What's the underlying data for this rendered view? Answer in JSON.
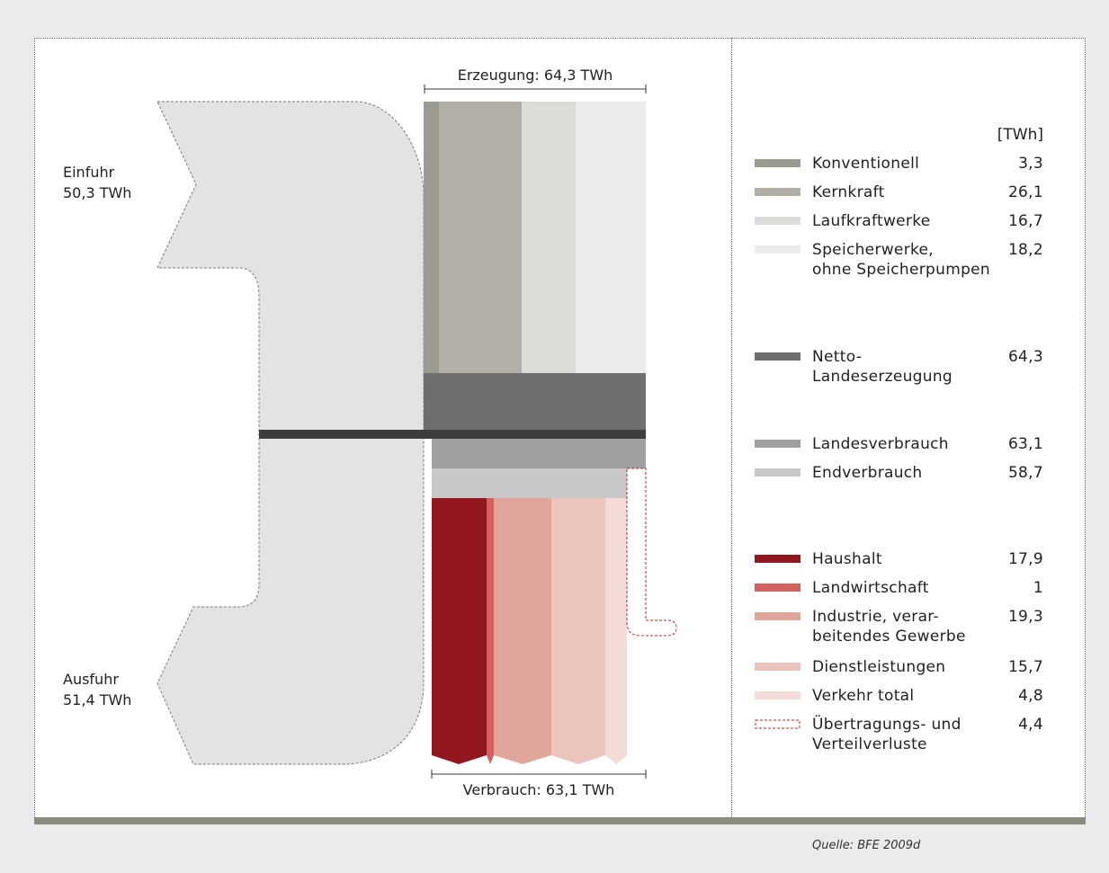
{
  "diagram": {
    "import": {
      "label": "Einfuhr",
      "value": "50,3 TWh"
    },
    "export": {
      "label": "Ausfuhr",
      "value": "51,4 TWh"
    },
    "production_label": "Erzeugung: 64,3 TWh",
    "consumption_label": "Verbrauch: 63,1 TWh"
  },
  "legend": {
    "unit": "[TWh]",
    "items": [
      {
        "key": "konventionell",
        "name": "Konventionell",
        "value": "3,3",
        "color": "#9a9a8e"
      },
      {
        "key": "kernkraft",
        "name": "Kernkraft",
        "value": "26,1",
        "color": "#b1afa6"
      },
      {
        "key": "laufkraftwerke",
        "name": "Laufkraftwerke",
        "value": "16,7",
        "color": "#dcdcd8"
      },
      {
        "key": "speicherwerke",
        "name": "Speicherwerke,\nohne Speicherpumpen",
        "value": "18,2",
        "color": "#ececec"
      },
      {
        "key": "netto",
        "name": "Netto-\nLandeserzeugung",
        "value": "64,3",
        "color": "#6f6f70"
      },
      {
        "key": "landesverbrauch",
        "name": "Landesverbrauch",
        "value": "63,1",
        "color": "#a0a0a1"
      },
      {
        "key": "endverbrauch",
        "name": "Endverbrauch",
        "value": "58,7",
        "color": "#c8c8c9"
      },
      {
        "key": "haushalt",
        "name": "Haushalt",
        "value": "17,9",
        "color": "#93171e"
      },
      {
        "key": "landwirtschaft",
        "name": "Landwirtschaft",
        "value": "1",
        "color": "#d2625e"
      },
      {
        "key": "industrie",
        "name": "Industrie, verar-\nbeitendes Gewerbe",
        "value": "19,3",
        "color": "#e0a69c"
      },
      {
        "key": "dienstleistungen",
        "name": "Dienstleistungen",
        "value": "15,7",
        "color": "#eac4bd"
      },
      {
        "key": "verkehr",
        "name": "Verkehr total",
        "value": "4,8",
        "color": "#f3dcd7"
      },
      {
        "key": "verluste",
        "name": "Übertragungs- und\nVerteilverluste",
        "value": "4,4",
        "color": "#b3262b"
      }
    ]
  },
  "source": "Quelle: BFE 2009d"
}
